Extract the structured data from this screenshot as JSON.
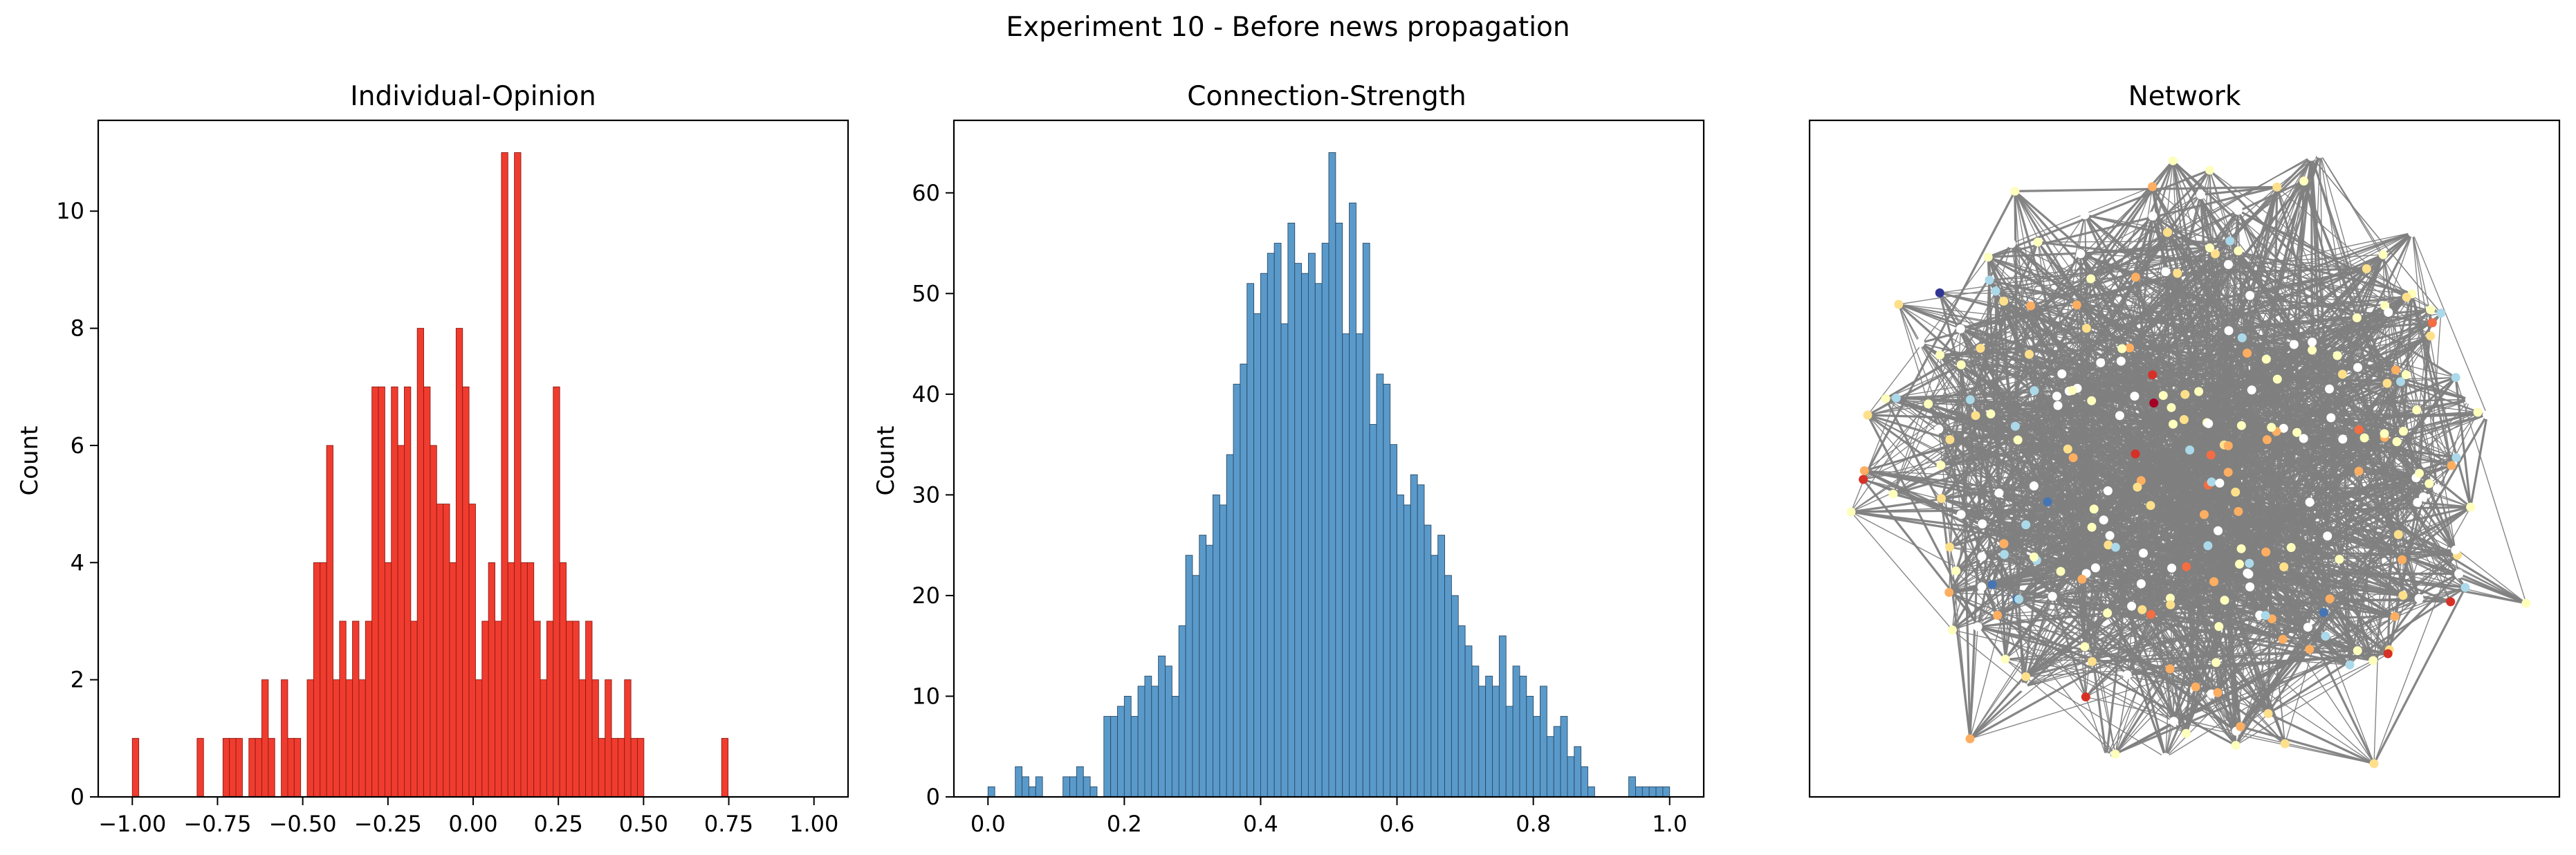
{
  "figure": {
    "title": "Experiment 10 - Before news propagation"
  },
  "chart_data": [
    {
      "type": "bar",
      "title": "Individual-Opinion",
      "xlabel": "",
      "ylabel": "Count",
      "xlim": [
        -1.1,
        1.1
      ],
      "ylim": [
        0,
        11.55
      ],
      "x_ticks": [
        -1.0,
        -0.75,
        -0.5,
        -0.25,
        0.0,
        0.25,
        0.5,
        0.75,
        1.0
      ],
      "x_tick_labels": [
        "−1.00",
        "−0.75",
        "−0.50",
        "−0.25",
        "0.00",
        "0.25",
        "0.50",
        "0.75",
        "1.00"
      ],
      "y_ticks": [
        0,
        2,
        4,
        6,
        8,
        10
      ],
      "y_tick_labels": [
        "0",
        "2",
        "4",
        "6",
        "8",
        "10"
      ],
      "bin_start": -1.0,
      "bin_width": 0.019,
      "values": [
        1,
        0,
        0,
        0,
        0,
        0,
        0,
        0,
        0,
        0,
        1,
        0,
        0,
        0,
        1,
        1,
        1,
        0,
        1,
        1,
        2,
        1,
        0,
        2,
        1,
        1,
        0,
        2,
        4,
        4,
        6,
        2,
        3,
        2,
        3,
        2,
        3,
        7,
        7,
        4,
        7,
        6,
        7,
        3,
        8,
        7,
        6,
        5,
        5,
        4,
        8,
        7,
        5,
        2,
        3,
        4,
        3,
        11,
        4,
        11,
        4,
        4,
        3,
        2,
        3,
        7,
        4,
        3,
        3,
        2,
        3,
        2,
        1,
        2,
        1,
        1,
        2,
        1,
        1,
        0,
        0,
        0,
        0,
        0,
        0,
        0,
        0,
        0,
        0,
        0,
        0,
        1
      ],
      "bar_color": "#f03c2f",
      "edge_color": "#8b1a12"
    },
    {
      "type": "bar",
      "title": "Connection-Strength",
      "xlabel": "",
      "ylabel": "Count",
      "xlim": [
        -0.05,
        1.05
      ],
      "ylim": [
        0,
        67.2
      ],
      "x_ticks": [
        0.0,
        0.2,
        0.4,
        0.6,
        0.8,
        1.0
      ],
      "x_tick_labels": [
        "0.0",
        "0.2",
        "0.4",
        "0.6",
        "0.8",
        "1.0"
      ],
      "y_ticks": [
        0,
        10,
        20,
        30,
        40,
        50,
        60
      ],
      "y_tick_labels": [
        "0",
        "10",
        "20",
        "30",
        "40",
        "50",
        "60"
      ],
      "bin_start": 0.0,
      "bin_width": 0.01,
      "values": [
        1,
        0,
        0,
        0,
        3,
        2,
        1,
        2,
        0,
        0,
        0,
        2,
        2,
        3,
        2,
        1,
        0,
        8,
        8,
        9,
        10,
        8,
        11,
        12,
        11,
        14,
        13,
        10,
        17,
        24,
        22,
        26,
        25,
        30,
        29,
        34,
        41,
        43,
        51,
        48,
        52,
        54,
        55,
        47,
        57,
        53,
        52,
        54,
        51,
        55,
        64,
        57,
        46,
        59,
        46,
        55,
        37,
        42,
        41,
        35,
        30,
        29,
        32,
        31,
        27,
        24,
        26,
        22,
        20,
        17,
        15,
        13,
        11,
        12,
        11,
        16,
        9,
        13,
        12,
        10,
        8,
        11,
        6,
        7,
        8,
        4,
        5,
        3,
        1,
        0,
        0,
        0,
        0,
        0,
        2,
        1,
        1,
        1,
        1,
        1
      ],
      "bar_color": "#5a9acb",
      "edge_color": "#2b4a64"
    },
    {
      "type": "network",
      "title": "Network",
      "node_count": 260,
      "edge_color": "#808080",
      "node_palette": [
        "#ffffff",
        "#fefebd",
        "#fee08b",
        "#fdae61",
        "#abd9e9",
        "#f46d43",
        "#d73027",
        "#4575b4",
        "#a50026",
        "#313695"
      ],
      "node_palette_weights": [
        30,
        26,
        14,
        12,
        10,
        3,
        2,
        1.2,
        0.6,
        0.4
      ]
    }
  ]
}
